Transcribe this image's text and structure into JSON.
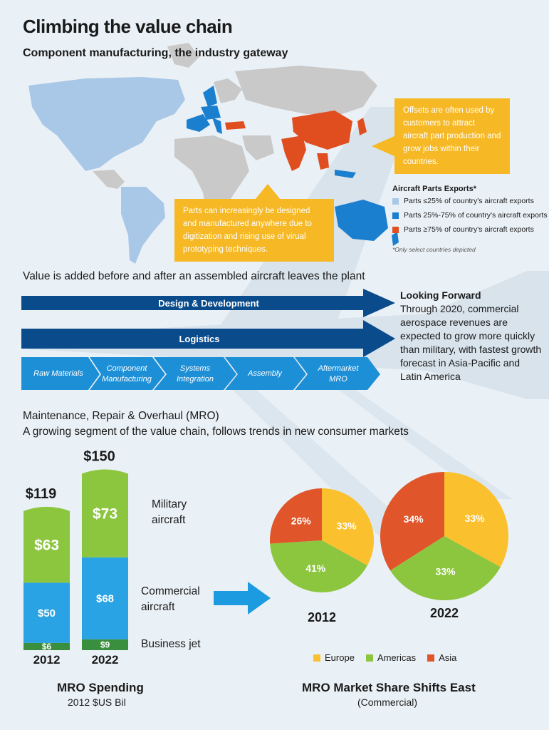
{
  "title": "Climbing the value chain",
  "subtitle": "Component manufacturing, the industry gateway",
  "callouts": {
    "offsets": "Offsets are often used by customers to attract aircraft part production and grow jobs within their countries.",
    "design": "Parts can increasingly be designed and manufactured anywhere due to digitization and rising use of virual prototyping techniques."
  },
  "map_legend": {
    "title": "Aircraft Parts Exports*",
    "items": [
      {
        "label": "Parts ≤25% of country's aircraft exports",
        "color": "#a9c8e8"
      },
      {
        "label": "Parts 25%-75% of country's aircraft exports",
        "color": "#1b7fd0"
      },
      {
        "label": "Parts ≥75% of country's aircraft exports",
        "color": "#e04e1f"
      }
    ],
    "note": "*Only select countries depicted"
  },
  "value_chain": {
    "heading": "Value is added before and after an assembled aircraft leaves the plant",
    "arrows": [
      "Design & Development",
      "Logistics"
    ],
    "stages": [
      "Raw Materials",
      "Component Manufacturing",
      "Systems Integration",
      "Assembly",
      "Aftermarket MRO"
    ]
  },
  "looking_forward": {
    "heading": "Looking Forward",
    "text": "Through 2020, commercial aerospace revenues are expected to grow more quickly than military, with fastest growth forecast in Asia-Pacific and Latin America"
  },
  "mro": {
    "title": "Maintenance, Repair & Overhaul (MRO)",
    "subtitle": "A growing segment of the value chain, follows trends in new consumer markets"
  },
  "chart_data": [
    {
      "type": "bar",
      "stacked": true,
      "title": "MRO Spending",
      "subtitle": "2012 $US Bil",
      "categories": [
        "2012",
        "2022"
      ],
      "totals": [
        "$119",
        "$150"
      ],
      "series": [
        {
          "name": "Business jet",
          "values": [
            6,
            9
          ],
          "labels": [
            "$6",
            "$9"
          ],
          "color": "#3a8f3e"
        },
        {
          "name": "Commercial aircraft",
          "values": [
            50,
            68
          ],
          "labels": [
            "$50",
            "$68"
          ],
          "color": "#29a3e3"
        },
        {
          "name": "Military aircraft",
          "values": [
            63,
            73
          ],
          "labels": [
            "$63",
            "$73"
          ],
          "color": "#8cc63f"
        }
      ],
      "series_labels": [
        "Military aircraft",
        "Commercial aircraft",
        "Business jet"
      ]
    },
    {
      "type": "pie",
      "title": "MRO Market Share Shifts East",
      "subtitle": "(Commercial)",
      "categories": [
        "Europe",
        "Americas",
        "Asia"
      ],
      "colors": [
        "#fbc02d",
        "#8cc63f",
        "#e0552a"
      ],
      "pies": [
        {
          "year": "2012",
          "values": [
            33,
            41,
            26
          ],
          "labels": [
            "33%",
            "41%",
            "26%"
          ]
        },
        {
          "year": "2022",
          "values": [
            33,
            33,
            34
          ],
          "labels": [
            "33%",
            "33%",
            "34%"
          ]
        }
      ]
    }
  ]
}
